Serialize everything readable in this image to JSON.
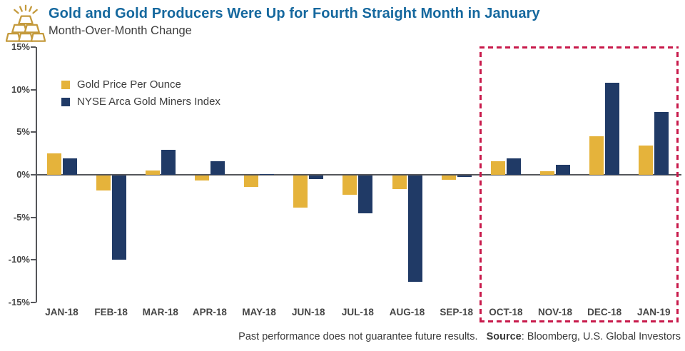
{
  "header": {
    "title": "Gold and Gold Producers Were Up for Fourth Straight Month in January",
    "subtitle": "Month-Over-Month Change"
  },
  "icons": {
    "gold_bars_icon_color": "#C49A3C"
  },
  "chart_data": {
    "type": "bar",
    "title": "Gold and Gold Producers Were Up for Fourth Straight Month in January",
    "subtitle": "Month-Over-Month Change",
    "categories": [
      "JAN-18",
      "FEB-18",
      "MAR-18",
      "APR-18",
      "MAY-18",
      "JUN-18",
      "JUL-18",
      "AUG-18",
      "SEP-18",
      "OCT-18",
      "NOV-18",
      "DEC-18",
      "JAN-19"
    ],
    "series": [
      {
        "name": "Gold Price Per Ounce",
        "color": "#E5B33B",
        "values": [
          2.5,
          -1.8,
          0.5,
          -0.6,
          -1.3,
          -3.8,
          -2.3,
          -1.6,
          -0.5,
          1.6,
          0.4,
          4.5,
          3.4
        ]
      },
      {
        "name": "NYSE Arca Gold Miners Index",
        "color": "#203A66",
        "values": [
          1.9,
          -9.9,
          2.9,
          1.6,
          0.1,
          -0.4,
          -4.4,
          -12.5,
          -0.1,
          1.9,
          1.2,
          10.8,
          7.4
        ]
      }
    ],
    "xlabel": "",
    "ylabel": "",
    "ylim": [
      -15,
      15
    ],
    "ytick_step": 5,
    "ytick_labels": [
      "15%",
      "10%",
      "5%",
      "0%",
      "-5%",
      "-10%",
      "-15%"
    ],
    "grid": false,
    "legend_position": "upper-left-inside",
    "highlight": {
      "from": "OCT-18",
      "to": "JAN-19",
      "color": "#C81A4B",
      "style": "dashed"
    }
  },
  "footer": {
    "disclaimer": "Past performance does not guarantee future results.",
    "source_label": "Source",
    "source_rest": ": Bloomberg, U.S. Global Investors"
  }
}
